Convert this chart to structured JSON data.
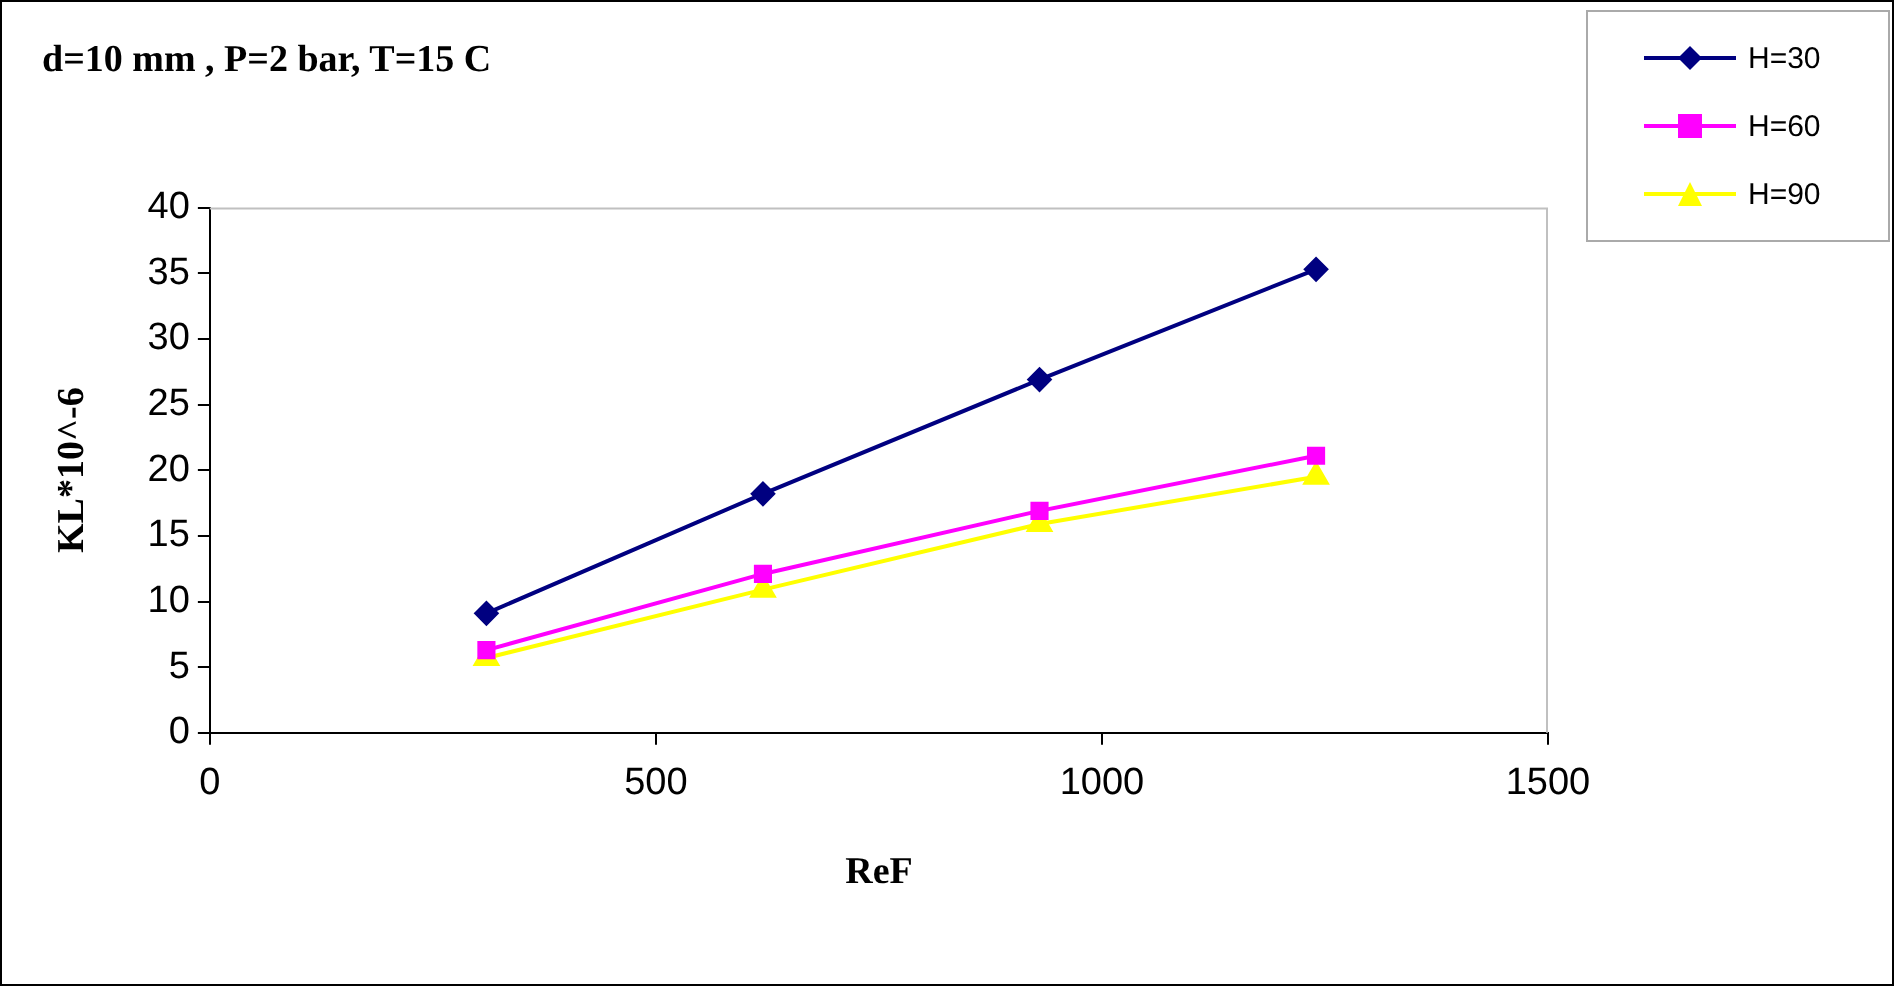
{
  "chart_data": {
    "type": "line",
    "title": "d=10 mm , P=2 bar, T=15 C",
    "xlabel": "ReF",
    "ylabel": "KL*10^-6",
    "x": [
      310,
      620,
      930,
      1240
    ],
    "series": [
      {
        "name": "H=30",
        "color": "#000080",
        "marker": "diamond",
        "values": [
          9.1,
          18.2,
          26.9,
          35.3
        ]
      },
      {
        "name": "H=60",
        "color": "#ff00ff",
        "marker": "square",
        "values": [
          6.3,
          12.1,
          16.9,
          21.1
        ]
      },
      {
        "name": "H=90",
        "color": "#ffff00",
        "marker": "triangle",
        "values": [
          5.7,
          10.9,
          15.9,
          19.5
        ]
      }
    ],
    "xlim": [
      0,
      1500
    ],
    "xticks": [
      0,
      500,
      1000,
      1500
    ],
    "ylim": [
      0,
      40
    ],
    "yticks": [
      0,
      5,
      10,
      15,
      20,
      25,
      30,
      35,
      40
    ],
    "grid": false,
    "legend": "top right",
    "line_style": "solid"
  }
}
